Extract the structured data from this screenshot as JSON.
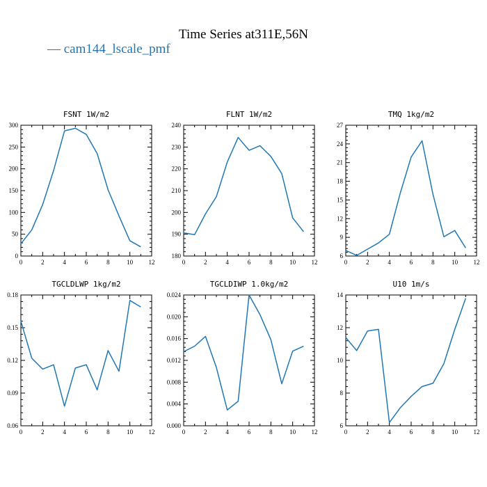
{
  "figure": {
    "title": "Time Series at311E,56N",
    "legend": {
      "label": "— cam144_lscale_pmf",
      "color": "#1f77b4",
      "placement": "top-left"
    }
  },
  "chart_data": [
    {
      "type": "line",
      "title": "FSNT   1W/m2",
      "x": [
        0,
        1,
        2,
        3,
        4,
        5,
        6,
        7,
        8,
        9,
        10,
        11
      ],
      "series": [
        {
          "values": [
            28,
            60,
            118,
            196,
            287,
            293,
            279,
            235,
            152,
            92,
            35,
            21
          ]
        }
      ],
      "xlim": [
        0,
        12
      ],
      "ylim": [
        0,
        300
      ],
      "xticks": [
        0,
        2,
        4,
        6,
        8,
        10,
        12
      ],
      "yticks": [
        0,
        50,
        100,
        150,
        200,
        250,
        300
      ],
      "ytick_labels": [
        "0",
        "50",
        "100",
        "150",
        "200",
        "250",
        "300"
      ],
      "line_color": "#1f77b4"
    },
    {
      "type": "line",
      "title": "FLNT   1W/m2",
      "x": [
        0,
        1,
        2,
        3,
        4,
        5,
        6,
        7,
        8,
        9,
        10,
        11
      ],
      "series": [
        {
          "values": [
            190.6,
            189.8,
            199.3,
            207.2,
            223.1,
            234.4,
            228.5,
            230.6,
            225.7,
            217.8,
            197.5,
            191.2
          ]
        }
      ],
      "xlim": [
        0,
        12
      ],
      "ylim": [
        180,
        240
      ],
      "xticks": [
        0,
        2,
        4,
        6,
        8,
        10,
        12
      ],
      "yticks": [
        180,
        190,
        200,
        210,
        220,
        230,
        240
      ],
      "ytick_labels": [
        "180",
        "190",
        "200",
        "210",
        "220",
        "230",
        "240"
      ],
      "line_color": "#1f77b4"
    },
    {
      "type": "line",
      "title": "TMQ   1kg/m2",
      "x": [
        0,
        1,
        2,
        3,
        4,
        5,
        6,
        7,
        8,
        9,
        10,
        11
      ],
      "series": [
        {
          "values": [
            6.9,
            6.1,
            7.1,
            8.1,
            9.5,
            16.1,
            21.9,
            24.5,
            15.9,
            9.1,
            10.1,
            7.3
          ]
        }
      ],
      "xlim": [
        0,
        12
      ],
      "ylim": [
        6,
        27
      ],
      "xticks": [
        0,
        2,
        4,
        6,
        8,
        10,
        12
      ],
      "yticks": [
        6,
        9,
        12,
        15,
        18,
        21,
        24,
        27
      ],
      "ytick_labels": [
        "6",
        "9",
        "12",
        "15",
        "18",
        "21",
        "24",
        "27"
      ],
      "line_color": "#1f77b4"
    },
    {
      "type": "line",
      "title": "TGCLDLWP   1kg/m2",
      "x": [
        0,
        1,
        2,
        3,
        4,
        5,
        6,
        7,
        8,
        9,
        10,
        11
      ],
      "series": [
        {
          "values": [
            0.156,
            0.122,
            0.112,
            0.116,
            0.078,
            0.113,
            0.116,
            0.093,
            0.129,
            0.11,
            0.175,
            0.169
          ]
        }
      ],
      "xlim": [
        0,
        12
      ],
      "ylim": [
        0.06,
        0.18
      ],
      "xticks": [
        0,
        2,
        4,
        6,
        8,
        10,
        12
      ],
      "yticks": [
        0.06,
        0.09,
        0.12,
        0.15,
        0.18
      ],
      "ytick_labels": [
        "0.06",
        "0.09",
        "0.12",
        "0.15",
        "0.18"
      ],
      "line_color": "#1f77b4"
    },
    {
      "type": "line",
      "title": "TGCLDIWP   1.0kg/m2",
      "x": [
        0,
        1,
        2,
        3,
        4,
        5,
        6,
        7,
        8,
        9,
        10,
        11
      ],
      "series": [
        {
          "values": [
            0.0136,
            0.0146,
            0.0164,
            0.0107,
            0.0029,
            0.0045,
            0.024,
            0.0204,
            0.0158,
            0.0077,
            0.0137,
            0.0146
          ]
        }
      ],
      "xlim": [
        0,
        12
      ],
      "ylim": [
        0,
        0.024
      ],
      "xticks": [
        0,
        2,
        4,
        6,
        8,
        10,
        12
      ],
      "yticks": [
        0,
        0.004,
        0.008,
        0.012,
        0.016,
        0.02,
        0.024
      ],
      "ytick_labels": [
        "0.000",
        "0.004",
        "0.008",
        "0.012",
        "0.016",
        "0.020",
        "0.024"
      ],
      "line_color": "#1f77b4"
    },
    {
      "type": "line",
      "title": "U10   1m/s",
      "x": [
        0,
        1,
        2,
        3,
        4,
        5,
        6,
        7,
        8,
        9,
        10,
        11
      ],
      "series": [
        {
          "values": [
            11.4,
            10.6,
            11.8,
            11.9,
            6.2,
            7.1,
            7.8,
            8.4,
            8.6,
            9.8,
            11.9,
            13.8
          ]
        }
      ],
      "xlim": [
        0,
        12
      ],
      "ylim": [
        6,
        14
      ],
      "xticks": [
        0,
        2,
        4,
        6,
        8,
        10,
        12
      ],
      "yticks": [
        6,
        8,
        10,
        12,
        14
      ],
      "ytick_labels": [
        "6",
        "8",
        "10",
        "12",
        "14"
      ],
      "line_color": "#1f77b4"
    }
  ]
}
